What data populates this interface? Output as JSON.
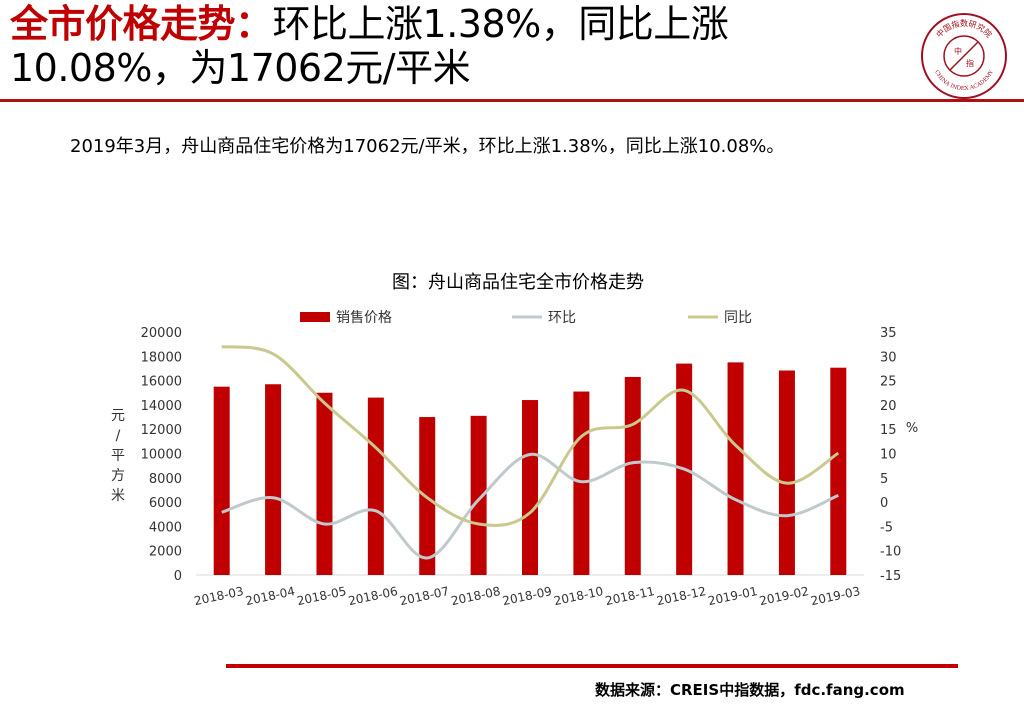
{
  "header": {
    "title_red": "全市价格走势：",
    "title_rest_line1": "环比上涨1.38%，同比上涨",
    "title_line2": "10.08%，为17062元/平米"
  },
  "logo": {
    "top_text": "中国指数研究院",
    "bottom_text": "CHINA INDEX ACADEMY",
    "center_left": "中",
    "center_right": "指"
  },
  "summary": "2019年3月，舟山商品住宅价格为17062元/平米，环比上涨1.38%，同比上涨10.08%。",
  "footer": {
    "source": "数据来源：CREIS中指数据，fdc.fang.com"
  },
  "colors": {
    "accent": "#c00000",
    "bar": "#c00000",
    "mom": "#c0c9cc",
    "yoy": "#c9c98f"
  },
  "chart_data": {
    "type": "bar",
    "title": "图：舟山商品住宅全市价格走势",
    "categories": [
      "2018-03",
      "2018-04",
      "2018-05",
      "2018-06",
      "2018-07",
      "2018-08",
      "2018-09",
      "2018-10",
      "2018-11",
      "2018-12",
      "2019-01",
      "2019-02",
      "2019-03"
    ],
    "ylabel": "元/平方米",
    "ylim": [
      0,
      20000
    ],
    "y_ticks": [
      "0",
      "2000",
      "4000",
      "6000",
      "8000",
      "10000",
      "12000",
      "14000",
      "16000",
      "18000",
      "20000"
    ],
    "y2label": "%",
    "y2lim": [
      -15,
      35
    ],
    "y2_ticks": [
      "-15",
      "-10",
      "-5",
      "0",
      "5",
      "10",
      "15",
      "20",
      "25",
      "30",
      "35"
    ],
    "legend_position": "top",
    "series": [
      {
        "name": "销售价格",
        "type": "bar",
        "axis": "left",
        "values": [
          15500,
          15700,
          15000,
          14600,
          13000,
          13100,
          14400,
          15100,
          16300,
          17400,
          17500,
          16830,
          17062
        ]
      },
      {
        "name": "环比",
        "type": "line",
        "axis": "right",
        "values": [
          -2.1,
          0.9,
          -4.5,
          -1.8,
          -11.5,
          0.5,
          9.8,
          4.2,
          8.1,
          6.8,
          0.5,
          -2.8,
          1.38
        ]
      },
      {
        "name": "同比",
        "type": "line",
        "axis": "right",
        "values": [
          32,
          30.5,
          20.4,
          11.2,
          0.9,
          -4.5,
          -2.2,
          13.5,
          16,
          23,
          11.7,
          3.9,
          10.08
        ]
      }
    ]
  }
}
